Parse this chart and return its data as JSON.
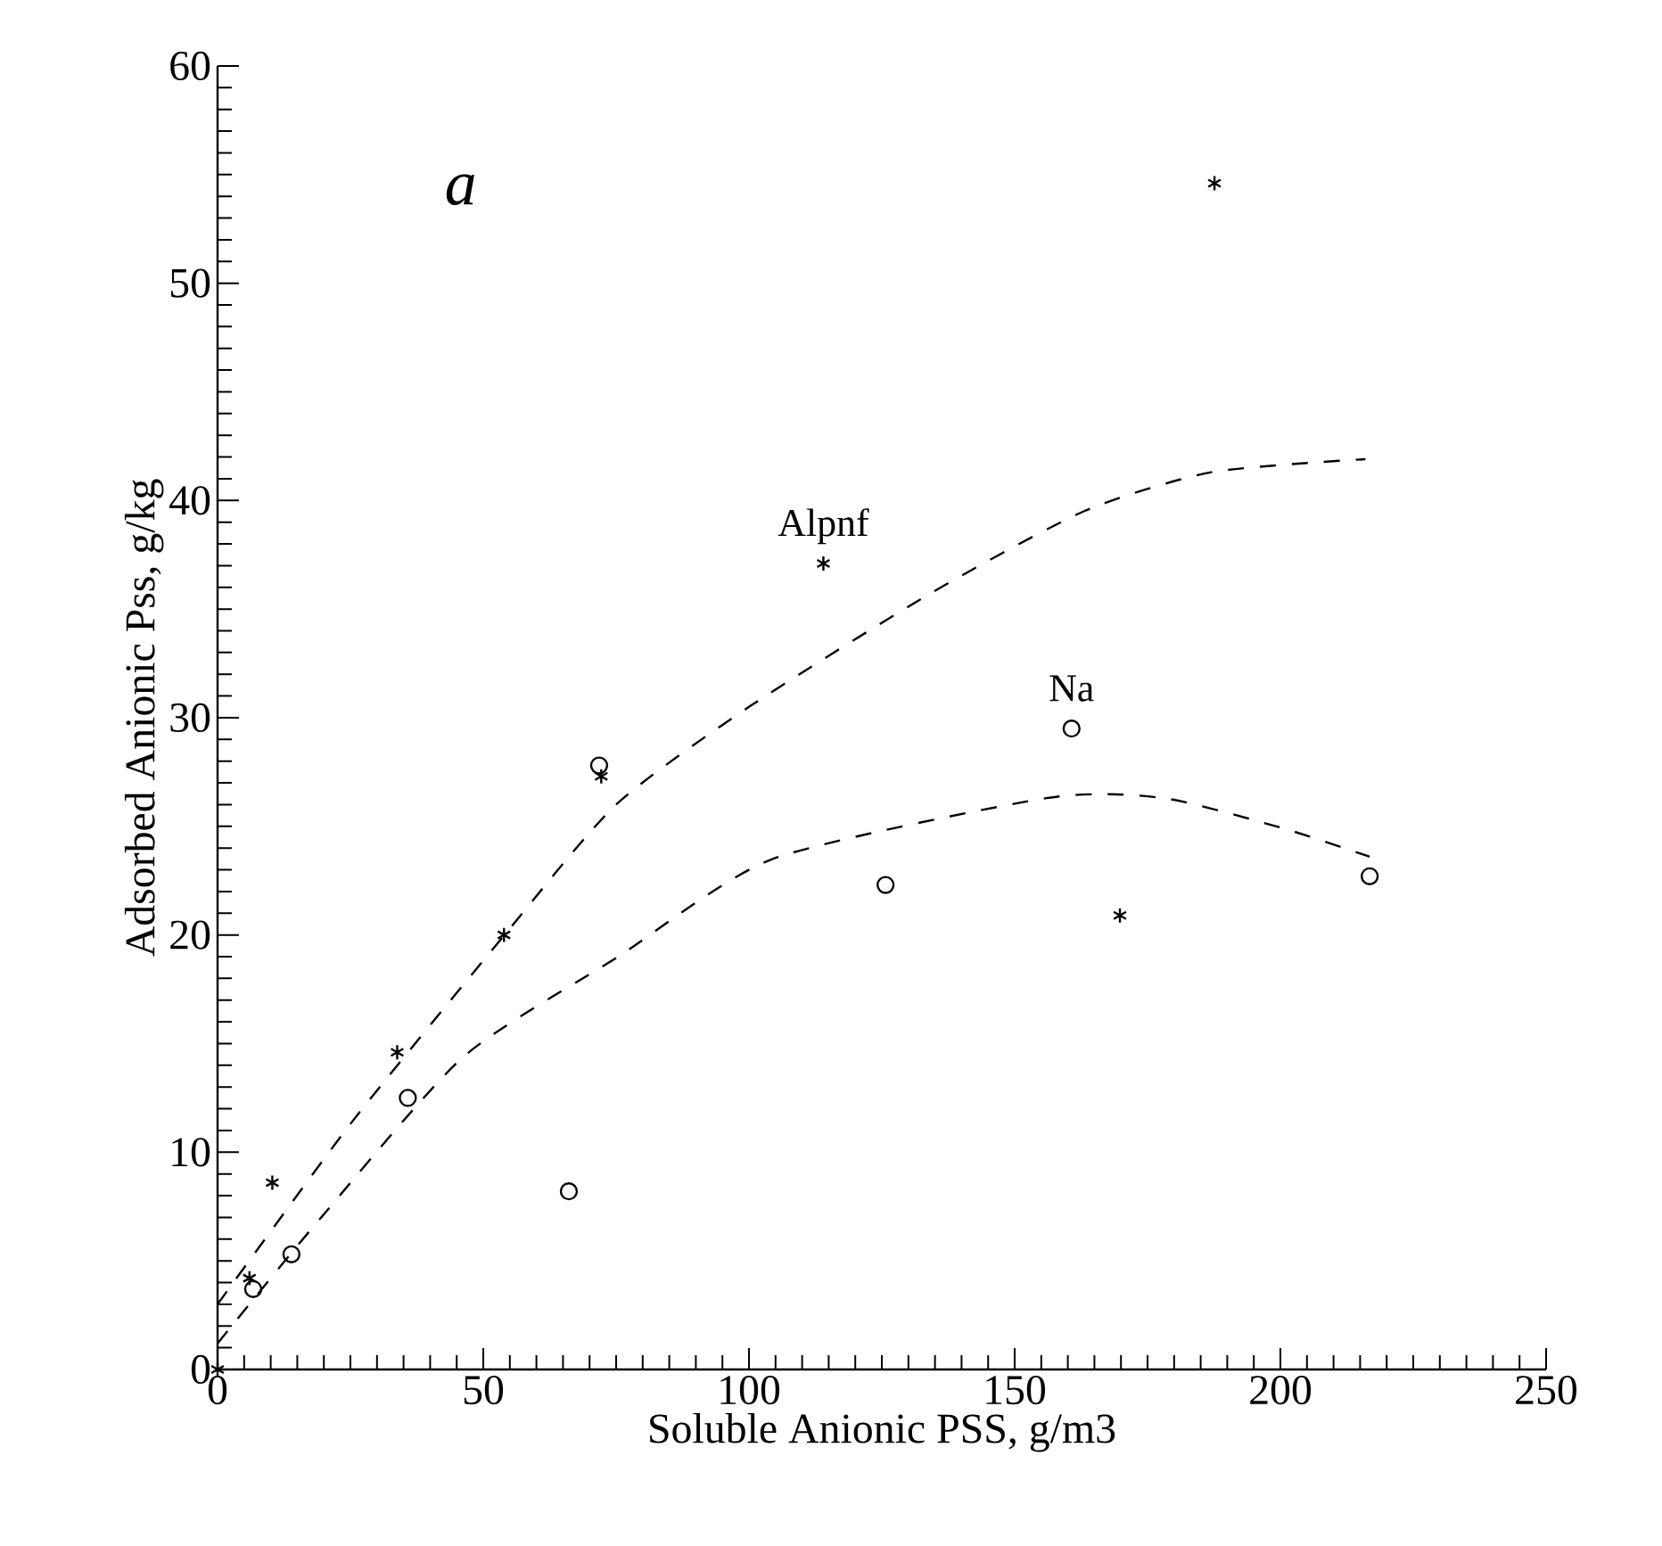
{
  "chart_data": {
    "type": "scatter",
    "xlabel": "Soluble Anionic PSS, g/m3",
    "ylabel": "Adsorbed Anionic Pss, g/kg",
    "annotations": [
      "a"
    ],
    "xlim": [
      0,
      250
    ],
    "ylim": [
      0,
      60
    ],
    "xticks": [
      0,
      50,
      100,
      150,
      200,
      250
    ],
    "yticks": [
      0,
      10,
      20,
      30,
      40,
      50,
      60
    ],
    "series": [
      {
        "name": "Alpnf",
        "marker": "cross",
        "color": "#000000",
        "x": [
          0,
          6.0,
          10.3,
          33.8,
          53.9,
          72.2,
          114,
          187.6,
          169.8
        ],
        "values": [
          0,
          4.2,
          8.6,
          14.6,
          20.0,
          27.3,
          37.1,
          54.6,
          20.9
        ]
      },
      {
        "name": "Na",
        "marker": "circle",
        "color": "#000000",
        "x": [
          6.7,
          13.9,
          35.8,
          66.1,
          71.8,
          125.7,
          160.7,
          216.8
        ],
        "values": [
          3.7,
          5.3,
          12.5,
          8.2,
          27.8,
          22.3,
          29.5,
          22.7
        ]
      },
      {
        "type": "line",
        "line_style": "dashed",
        "marker": "none",
        "color": "#000000",
        "x": [
          0,
          25,
          54,
          75,
          100,
          134,
          163,
          187,
          216
        ],
        "values": [
          3,
          11.3,
          20,
          26,
          30.5,
          35.7,
          39.5,
          41.3,
          41.9
        ]
      },
      {
        "type": "line",
        "line_style": "dashed",
        "marker": "none",
        "color": "#000000",
        "x": [
          0,
          19.5,
          46.3,
          75.4,
          104.5,
          156,
          178,
          200.6,
          216.8
        ],
        "values": [
          1.2,
          7.0,
          14.4,
          19.0,
          23.5,
          26.3,
          26.3,
          24.9,
          23.6
        ]
      }
    ]
  }
}
